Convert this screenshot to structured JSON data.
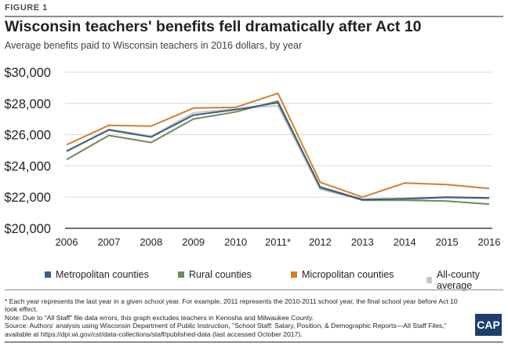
{
  "figure_label": "FIGURE 1",
  "title": "Wisconsin teachers' benefits fell dramatically after Act 10",
  "subtitle": "Average benefits paid to Wisconsin teachers in 2016 dollars, by year",
  "notes": [
    "* Each year represents the last year in a given school year. For example, 2011 represents the 2010-2011 school year, the final school year before Act 10 took effect.",
    "Note: Due to \"All Staff\" file data errors, this graph excludes teachers in Kenosha and Milwaukee County.",
    "Source: Authors' analysis using Wisconsin Department of Public Instruction, \"School Staff: Salary, Position, & Demographic Reports—All Staff Files,\" available at https://dpi.wi.gov/cst/data-collections/staff/published-data (last accessed October 2017)."
  ],
  "logo_text": "CAP",
  "chart_data": {
    "type": "line",
    "categories": [
      "2006",
      "2007",
      "2008",
      "2009",
      "2010",
      "2011*",
      "2012",
      "2013",
      "2014",
      "2015",
      "2016"
    ],
    "ylim": [
      20000,
      30000
    ],
    "yticks": [
      20000,
      22000,
      24000,
      26000,
      28000,
      30000
    ],
    "ytick_labels": [
      "$20,000",
      "$22,000",
      "$24,000",
      "$26,000",
      "$28,000",
      "$30,000"
    ],
    "grid": true,
    "legend_position": "bottom",
    "series": [
      {
        "name": "Metropolitan counties",
        "color": "#3e5d80",
        "values": [
          24950,
          26300,
          25850,
          27250,
          27600,
          28050,
          22650,
          21850,
          21900,
          22000,
          21950
        ]
      },
      {
        "name": "Rural counties",
        "color": "#6e8b5c",
        "values": [
          24400,
          25950,
          25500,
          27000,
          27450,
          28150,
          22600,
          21800,
          21800,
          21750,
          21550
        ]
      },
      {
        "name": "Micropolitan counties",
        "color": "#d57e2a",
        "values": [
          25350,
          26600,
          26550,
          27700,
          27750,
          28650,
          22950,
          22000,
          22900,
          22800,
          22550
        ]
      },
      {
        "name": "All-county average",
        "color": "#c7c8ca",
        "values": [
          24900,
          26350,
          25900,
          27400,
          27650,
          27850,
          22500,
          21850,
          21850,
          21950,
          21900
        ]
      }
    ]
  }
}
